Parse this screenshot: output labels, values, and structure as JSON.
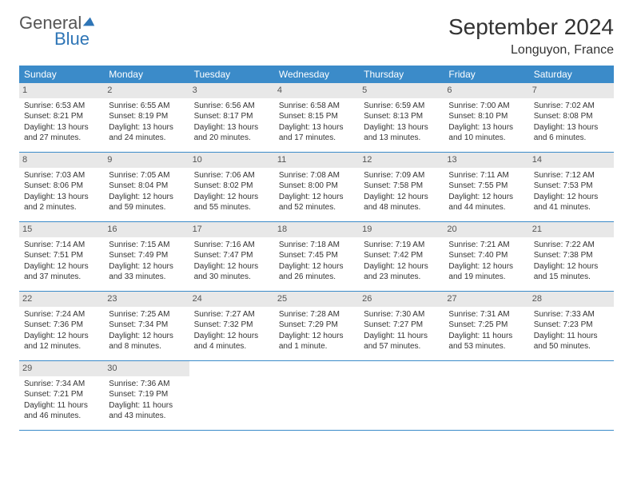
{
  "brand": {
    "name1": "General",
    "name2": "Blue",
    "icon_color": "#2e75b6"
  },
  "title": "September 2024",
  "location": "Longuyon, France",
  "colors": {
    "header_bg": "#3b8bc9",
    "header_text": "#ffffff",
    "daynum_bg": "#e8e8e8",
    "rule": "#3b8bc9",
    "text": "#333333"
  },
  "day_names": [
    "Sunday",
    "Monday",
    "Tuesday",
    "Wednesday",
    "Thursday",
    "Friday",
    "Saturday"
  ],
  "weeks": [
    [
      {
        "n": 1,
        "sr": "6:53 AM",
        "ss": "8:21 PM",
        "dl": "13 hours and 27 minutes."
      },
      {
        "n": 2,
        "sr": "6:55 AM",
        "ss": "8:19 PM",
        "dl": "13 hours and 24 minutes."
      },
      {
        "n": 3,
        "sr": "6:56 AM",
        "ss": "8:17 PM",
        "dl": "13 hours and 20 minutes."
      },
      {
        "n": 4,
        "sr": "6:58 AM",
        "ss": "8:15 PM",
        "dl": "13 hours and 17 minutes."
      },
      {
        "n": 5,
        "sr": "6:59 AM",
        "ss": "8:13 PM",
        "dl": "13 hours and 13 minutes."
      },
      {
        "n": 6,
        "sr": "7:00 AM",
        "ss": "8:10 PM",
        "dl": "13 hours and 10 minutes."
      },
      {
        "n": 7,
        "sr": "7:02 AM",
        "ss": "8:08 PM",
        "dl": "13 hours and 6 minutes."
      }
    ],
    [
      {
        "n": 8,
        "sr": "7:03 AM",
        "ss": "8:06 PM",
        "dl": "13 hours and 2 minutes."
      },
      {
        "n": 9,
        "sr": "7:05 AM",
        "ss": "8:04 PM",
        "dl": "12 hours and 59 minutes."
      },
      {
        "n": 10,
        "sr": "7:06 AM",
        "ss": "8:02 PM",
        "dl": "12 hours and 55 minutes."
      },
      {
        "n": 11,
        "sr": "7:08 AM",
        "ss": "8:00 PM",
        "dl": "12 hours and 52 minutes."
      },
      {
        "n": 12,
        "sr": "7:09 AM",
        "ss": "7:58 PM",
        "dl": "12 hours and 48 minutes."
      },
      {
        "n": 13,
        "sr": "7:11 AM",
        "ss": "7:55 PM",
        "dl": "12 hours and 44 minutes."
      },
      {
        "n": 14,
        "sr": "7:12 AM",
        "ss": "7:53 PM",
        "dl": "12 hours and 41 minutes."
      }
    ],
    [
      {
        "n": 15,
        "sr": "7:14 AM",
        "ss": "7:51 PM",
        "dl": "12 hours and 37 minutes."
      },
      {
        "n": 16,
        "sr": "7:15 AM",
        "ss": "7:49 PM",
        "dl": "12 hours and 33 minutes."
      },
      {
        "n": 17,
        "sr": "7:16 AM",
        "ss": "7:47 PM",
        "dl": "12 hours and 30 minutes."
      },
      {
        "n": 18,
        "sr": "7:18 AM",
        "ss": "7:45 PM",
        "dl": "12 hours and 26 minutes."
      },
      {
        "n": 19,
        "sr": "7:19 AM",
        "ss": "7:42 PM",
        "dl": "12 hours and 23 minutes."
      },
      {
        "n": 20,
        "sr": "7:21 AM",
        "ss": "7:40 PM",
        "dl": "12 hours and 19 minutes."
      },
      {
        "n": 21,
        "sr": "7:22 AM",
        "ss": "7:38 PM",
        "dl": "12 hours and 15 minutes."
      }
    ],
    [
      {
        "n": 22,
        "sr": "7:24 AM",
        "ss": "7:36 PM",
        "dl": "12 hours and 12 minutes."
      },
      {
        "n": 23,
        "sr": "7:25 AM",
        "ss": "7:34 PM",
        "dl": "12 hours and 8 minutes."
      },
      {
        "n": 24,
        "sr": "7:27 AM",
        "ss": "7:32 PM",
        "dl": "12 hours and 4 minutes."
      },
      {
        "n": 25,
        "sr": "7:28 AM",
        "ss": "7:29 PM",
        "dl": "12 hours and 1 minute."
      },
      {
        "n": 26,
        "sr": "7:30 AM",
        "ss": "7:27 PM",
        "dl": "11 hours and 57 minutes."
      },
      {
        "n": 27,
        "sr": "7:31 AM",
        "ss": "7:25 PM",
        "dl": "11 hours and 53 minutes."
      },
      {
        "n": 28,
        "sr": "7:33 AM",
        "ss": "7:23 PM",
        "dl": "11 hours and 50 minutes."
      }
    ],
    [
      {
        "n": 29,
        "sr": "7:34 AM",
        "ss": "7:21 PM",
        "dl": "11 hours and 46 minutes."
      },
      {
        "n": 30,
        "sr": "7:36 AM",
        "ss": "7:19 PM",
        "dl": "11 hours and 43 minutes."
      },
      null,
      null,
      null,
      null,
      null
    ]
  ],
  "labels": {
    "sunrise": "Sunrise: ",
    "sunset": "Sunset: ",
    "daylight": "Daylight: "
  }
}
